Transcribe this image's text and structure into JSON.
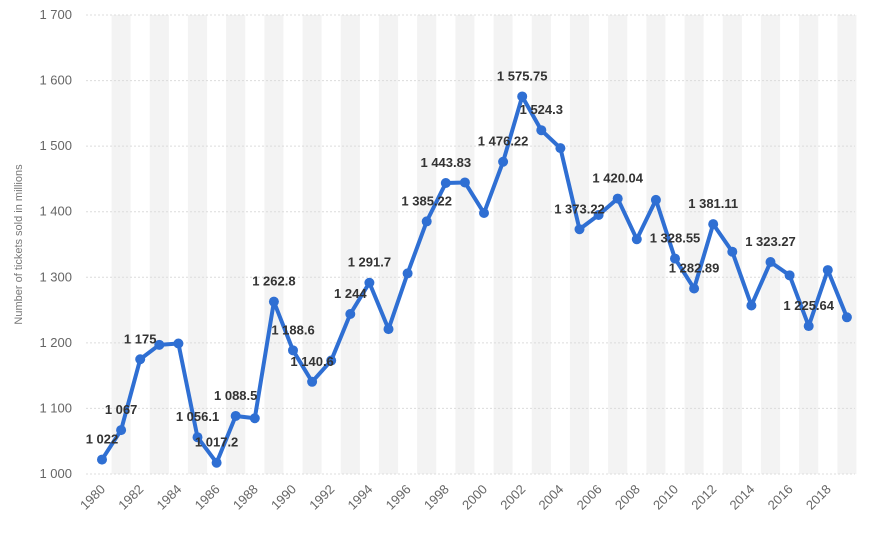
{
  "chart_data": {
    "type": "line",
    "ylabel": "Number of tickets sold in millions",
    "xlabel": "",
    "ylim": [
      1000,
      1700
    ],
    "yticks": [
      1000,
      1100,
      1200,
      1300,
      1400,
      1500,
      1600,
      1700
    ],
    "ytick_labels": [
      "1 000",
      "1 100",
      "1 200",
      "1 300",
      "1 400",
      "1 500",
      "1 600",
      "1 700"
    ],
    "xlim": [
      1980,
      2019
    ],
    "xticks": [
      1980,
      1982,
      1984,
      1986,
      1988,
      1990,
      1992,
      1994,
      1996,
      1998,
      2000,
      2002,
      2004,
      2006,
      2008,
      2010,
      2012,
      2014,
      2016,
      2018
    ],
    "grid": true,
    "line_color": "#2f6fd3",
    "x": [
      1980,
      1981,
      1982,
      1983,
      1984,
      1985,
      1986,
      1987,
      1988,
      1989,
      1990,
      1991,
      1992,
      1993,
      1994,
      1995,
      1996,
      1997,
      1998,
      1999,
      2000,
      2001,
      2002,
      2003,
      2004,
      2005,
      2006,
      2007,
      2008,
      2009,
      2010,
      2011,
      2012,
      2013,
      2014,
      2015,
      2016,
      2017,
      2018,
      2019
    ],
    "values": [
      1022,
      1067,
      1175,
      1197,
      1199,
      1056.1,
      1017.2,
      1088.5,
      1085,
      1262.8,
      1188.6,
      1140.6,
      1173,
      1244,
      1291.7,
      1221,
      1306,
      1385.22,
      1443.83,
      1444.6,
      1398,
      1476.22,
      1575.75,
      1524.3,
      1497,
      1373.22,
      1395,
      1420.04,
      1358,
      1418,
      1328.55,
      1282.89,
      1381.11,
      1339,
      1257,
      1323.27,
      1303,
      1225.64,
      1311,
      1239
    ],
    "data_labels": [
      {
        "x": 1980,
        "text": "1 022"
      },
      {
        "x": 1981,
        "text": "1 067"
      },
      {
        "x": 1982,
        "text": "1 175"
      },
      {
        "x": 1985,
        "text": "1 056.1"
      },
      {
        "x": 1986,
        "text": "1 017.2"
      },
      {
        "x": 1987,
        "text": "1 088.5"
      },
      {
        "x": 1989,
        "text": "1 262.8"
      },
      {
        "x": 1990,
        "text": "1 188.6"
      },
      {
        "x": 1991,
        "text": "1 140.6"
      },
      {
        "x": 1993,
        "text": "1 244"
      },
      {
        "x": 1994,
        "text": "1 291.7"
      },
      {
        "x": 1997,
        "text": "1 385.22"
      },
      {
        "x": 1998,
        "text": "1 443.83"
      },
      {
        "x": 2001,
        "text": "1 476.22"
      },
      {
        "x": 2002,
        "text": "1 575.75"
      },
      {
        "x": 2003,
        "text": "1 524.3"
      },
      {
        "x": 2005,
        "text": "1 373.22"
      },
      {
        "x": 2007,
        "text": "1 420.04"
      },
      {
        "x": 2010,
        "text": "1 328.55"
      },
      {
        "x": 2011,
        "text": "1 282.89"
      },
      {
        "x": 2012,
        "text": "1 381.11"
      },
      {
        "x": 2015,
        "text": "1 323.27"
      },
      {
        "x": 2017,
        "text": "1 225.64"
      }
    ]
  }
}
